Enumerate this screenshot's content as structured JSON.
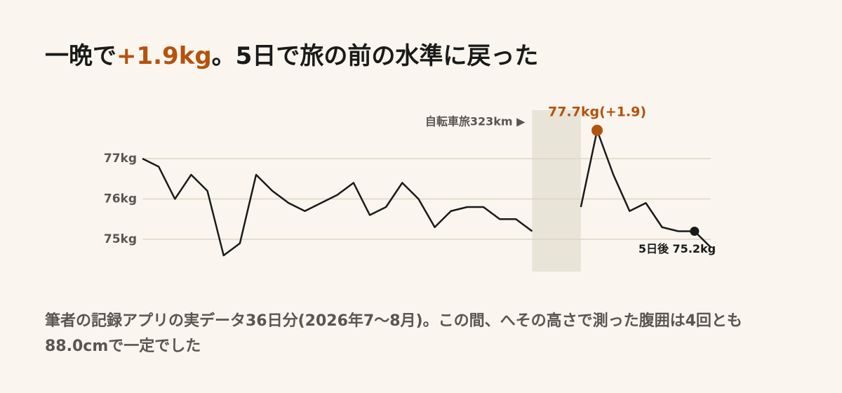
{
  "chart_data": {
    "type": "line",
    "title": [
      "一晩で",
      "+1.9kg",
      "。5日で旅の前の水準に戻った"
    ],
    "note": "筆者の記録アプリの実データ36日分(2026年7〜8月)。この間、へその高さで測った腹囲は4回とも88.0cmで一定でした",
    "values": [
      77.0,
      76.8,
      76.0,
      76.6,
      76.2,
      74.6,
      74.9,
      76.6,
      76.2,
      75.9,
      75.7,
      75.9,
      76.1,
      76.4,
      75.6,
      75.8,
      76.4,
      76.0,
      75.3,
      75.7,
      75.8,
      75.8,
      75.5,
      75.5,
      75.2,
      null,
      null,
      75.8,
      77.7,
      76.6,
      75.7,
      75.9,
      75.3,
      75.2,
      75.2,
      74.8
    ],
    "color": "#1a1a1a",
    "accent_color": "#b5520e",
    "ylim": [
      74.2,
      78.2
    ],
    "yticks": [
      {
        "value": 75,
        "label": "75kg"
      },
      {
        "value": 76,
        "label": "76kg"
      },
      {
        "value": 77,
        "label": "77kg"
      }
    ],
    "grid": true,
    "band": {
      "label": "自転車旅323km ▶",
      "start": 24,
      "end": 27,
      "color": "#e9e4d8"
    },
    "annotations": [
      {
        "at": 28,
        "label": "77.7kg(+1.9)",
        "accent": true
      },
      {
        "at": 34,
        "label": "5日後 75.2kg",
        "accent": false
      }
    ]
  }
}
